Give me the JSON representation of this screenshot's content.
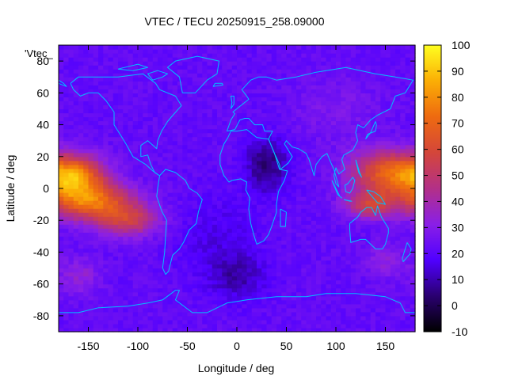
{
  "chart_data": {
    "type": "heatmap",
    "title": "VTEC / TECU 20250915_258.09000",
    "xlabel": "Longitude / deg",
    "ylabel": "Latitude / deg",
    "series_key": "'Vtec_",
    "xlim": [
      -180,
      180
    ],
    "ylim": [
      -90,
      90
    ],
    "xticks": [
      -150,
      -100,
      -50,
      0,
      50,
      100,
      150
    ],
    "yticks": [
      -80,
      -60,
      -40,
      -20,
      0,
      20,
      40,
      60,
      80
    ],
    "colorbar": {
      "range": [
        -10,
        100
      ],
      "ticks": [
        -10,
        0,
        10,
        20,
        30,
        40,
        50,
        60,
        70,
        80,
        90,
        100
      ],
      "colors": [
        "#000000",
        "#2a0070",
        "#5000ff",
        "#8a1fe6",
        "#b33087",
        "#d4463a",
        "#ee6a10",
        "#fbae05",
        "#ffff20"
      ]
    },
    "value_field": {
      "background": 22,
      "lat_step": 2.5,
      "lon_step": 5,
      "regions": [
        {
          "lon": -165,
          "lat": 8,
          "sigma_lon": 22,
          "sigma_lat": 9,
          "peak": 55
        },
        {
          "lon": -148,
          "lat": -8,
          "sigma_lon": 30,
          "sigma_lat": 8,
          "peak": 48
        },
        {
          "lon": -110,
          "lat": -20,
          "sigma_lon": 22,
          "sigma_lat": 7,
          "peak": 30
        },
        {
          "lon": -160,
          "lat": -55,
          "sigma_lon": 15,
          "sigma_lat": 8,
          "peak": 12
        },
        {
          "lon": 150,
          "lat": 10,
          "sigma_lon": 25,
          "sigma_lat": 10,
          "peak": 42
        },
        {
          "lon": 135,
          "lat": -10,
          "sigma_lon": 18,
          "sigma_lat": 6,
          "peak": 30
        },
        {
          "lon": 30,
          "lat": 15,
          "sigma_lon": 15,
          "sigma_lat": 12,
          "peak": -18
        },
        {
          "lon": 0,
          "lat": -55,
          "sigma_lon": 20,
          "sigma_lat": 10,
          "peak": -12
        },
        {
          "lon": -20,
          "lat": -30,
          "sigma_lon": 30,
          "sigma_lat": 18,
          "peak": -6
        },
        {
          "lon": 100,
          "lat": 50,
          "sigma_lon": 30,
          "sigma_lat": 15,
          "peak": 6
        },
        {
          "lon": 150,
          "lat": -45,
          "sigma_lon": 15,
          "sigma_lat": 8,
          "peak": 10
        }
      ]
    },
    "overlay": "coastlines",
    "coastline_color": "#00bfff",
    "grid": false
  }
}
